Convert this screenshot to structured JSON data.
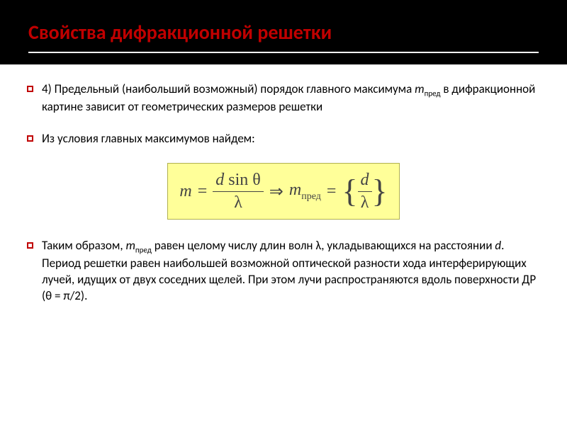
{
  "header": {
    "title": "Свойства дифракционной решетки",
    "title_color": "#c00000",
    "background_color": "#000000",
    "underline_color": "#ffffff"
  },
  "bullets": {
    "item1_prefix": "4) Предельный (наибольший возможный) порядок главного максимума ",
    "item1_m": "m",
    "item1_sub": "пред",
    "item1_suffix": " в дифракционной картине зависит от геометрических размеров решетки",
    "item2": "Из условия главных максимумов найдем:",
    "item3_prefix": "Таким образом, ",
    "item3_m": "m",
    "item3_sub": "пред",
    "item3_suffix": " равен целому числу длин волн λ, укладывающихся на расстоянии ",
    "item3_d": "d",
    "item3_rest": ". Период решетки равен наибольшей возможной оптической разности хода интерферирующих лучей, идущих от двух соседних щелей. При этом лучи распространяются вдоль поверхности ДР (θ = π/2)."
  },
  "formula": {
    "m": "m",
    "eq": "=",
    "num1": "d sin θ",
    "den1": "λ",
    "arrow": "⇒",
    "m2": "m",
    "sub_pred": "пред",
    "eq2": "=",
    "num2": "d",
    "den2": "λ",
    "background_color": "#ffff99"
  },
  "styling": {
    "bullet_border_color": "#c00000",
    "body_font_size": 17,
    "title_font_size": 28,
    "formula_font_size": 24
  }
}
